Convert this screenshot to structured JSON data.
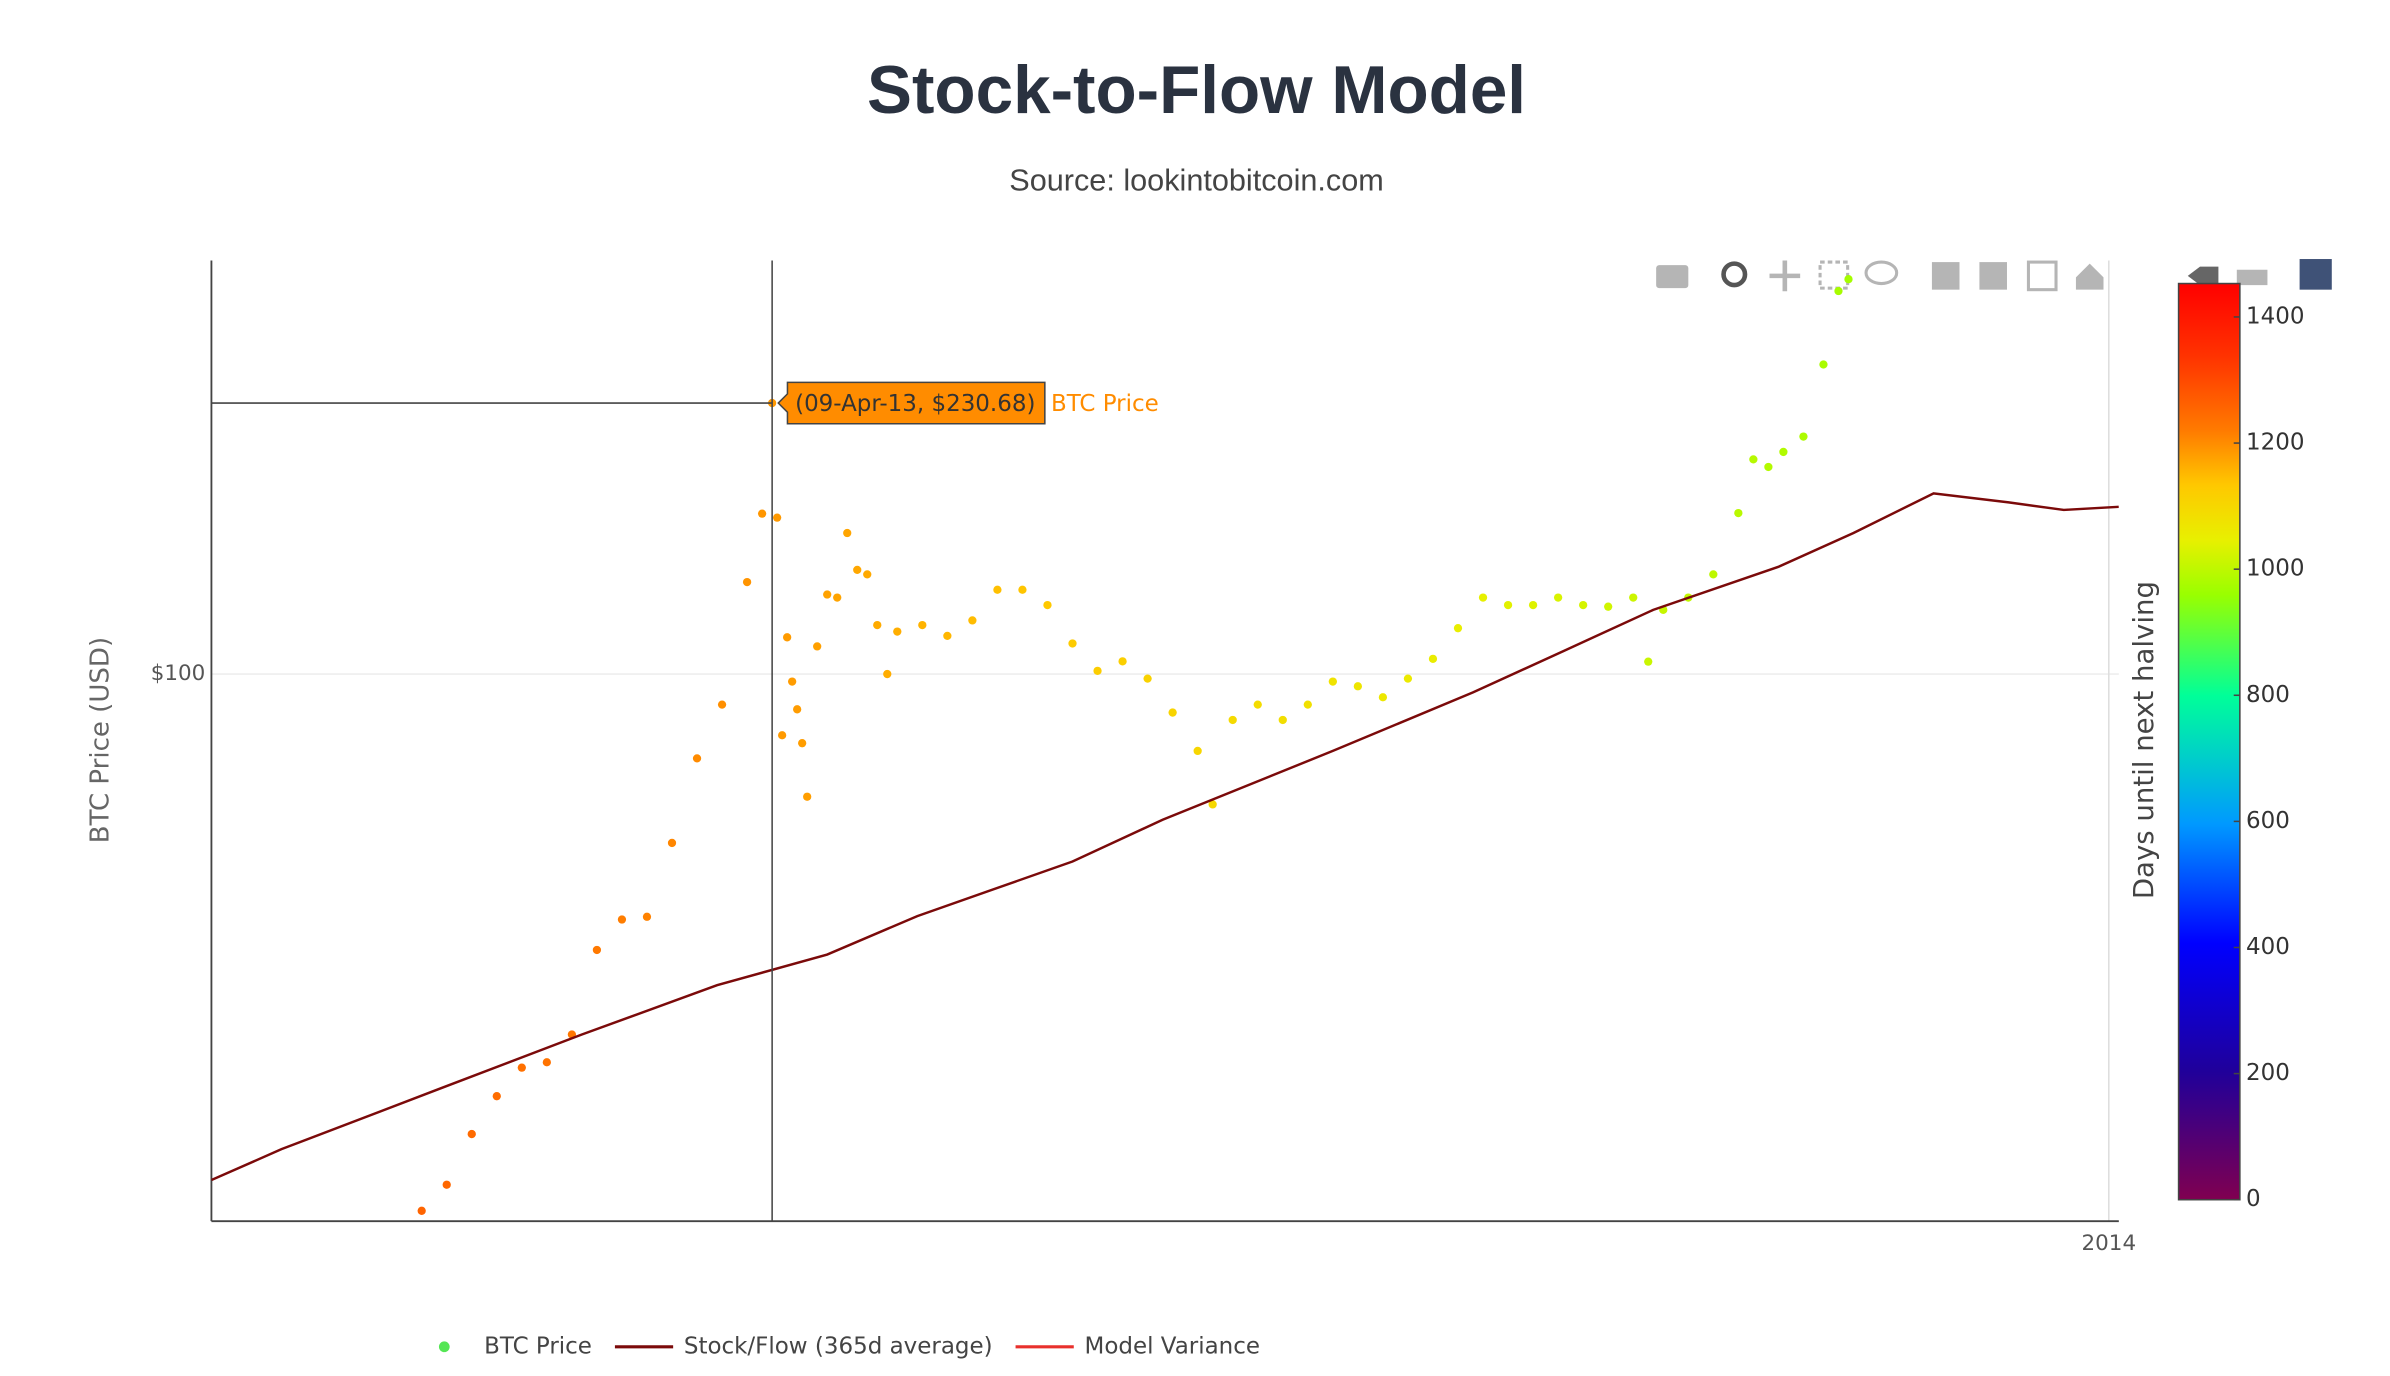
{
  "chart_data": {
    "type": "scatter",
    "title": "Stock-to-Flow Model",
    "subtitle": "Source: lookintobitcoin.com",
    "y_label": "BTC Price (USD)",
    "colorbar_title": "Days until next halving",
    "xlim": [
      "2012-12-18",
      "2014-01-03"
    ],
    "ylim": [
      18.5,
      358
    ],
    "log_y": true,
    "grid": true,
    "xticks": [
      {
        "value": "2014-01-01",
        "label": "2014"
      }
    ],
    "yticks": [
      {
        "value": 100,
        "label": "$100"
      }
    ],
    "clim": [
      0,
      1453
    ],
    "colorbar_ticks": [
      0,
      200,
      400,
      600,
      800,
      1000,
      1200,
      1400
    ],
    "colorscale": [
      [
        0,
        "#800050"
      ],
      [
        0.14,
        "#20009a"
      ],
      [
        0.28,
        "#0000ff"
      ],
      [
        0.41,
        "#0099ff"
      ],
      [
        0.55,
        "#00ff99"
      ],
      [
        0.66,
        "#99ff00"
      ],
      [
        0.72,
        "#e8f000"
      ],
      [
        0.78,
        "#ffc800"
      ],
      [
        0.84,
        "#ff7a00"
      ],
      [
        0.92,
        "#ff3300"
      ],
      [
        1,
        "#ff0000"
      ]
    ],
    "hover": {
      "text": "(09-Apr-13, $230.68)",
      "x": "2013-04-09",
      "y": 230.68,
      "color": "#ff8c00"
    },
    "series": [
      {
        "name": "BTC Price",
        "type": "scatter",
        "color": "#55e655",
        "x": [
          "2013-01-29",
          "2013-02-03",
          "2013-02-08",
          "2013-02-13",
          "2013-02-18",
          "2013-02-23",
          "2013-02-28",
          "2013-03-05",
          "2013-03-10",
          "2013-03-15",
          "2013-03-20",
          "2013-03-25",
          "2013-03-30",
          "2013-04-04",
          "2013-04-07",
          "2013-04-09",
          "2013-04-10",
          "2013-04-11",
          "2013-04-12",
          "2013-04-13",
          "2013-04-14",
          "2013-04-15",
          "2013-04-16",
          "2013-04-18",
          "2013-04-20",
          "2013-04-22",
          "2013-04-24",
          "2013-04-26",
          "2013-04-28",
          "2013-04-30",
          "2013-05-02",
          "2013-05-04",
          "2013-05-09",
          "2013-05-14",
          "2013-05-19",
          "2013-05-24",
          "2013-05-29",
          "2013-06-03",
          "2013-06-08",
          "2013-06-13",
          "2013-06-18",
          "2013-06-23",
          "2013-06-28",
          "2013-07-03",
          "2013-07-06",
          "2013-07-10",
          "2013-07-15",
          "2013-07-20",
          "2013-07-25",
          "2013-07-30",
          "2013-08-04",
          "2013-08-09",
          "2013-08-14",
          "2013-08-19",
          "2013-08-24",
          "2013-08-29",
          "2013-09-03",
          "2013-09-08",
          "2013-09-13",
          "2013-09-18",
          "2013-09-23",
          "2013-09-28",
          "2013-10-01",
          "2013-10-04",
          "2013-10-09",
          "2013-10-14",
          "2013-10-19",
          "2013-10-22",
          "2013-10-25",
          "2013-10-28",
          "2013-11-01",
          "2013-11-05",
          "2013-11-08",
          "2013-11-10"
        ],
        "values": [
          19.1,
          20.7,
          24.2,
          27.2,
          29.7,
          30.2,
          32.9,
          42.7,
          46.9,
          47.3,
          59.4,
          77.1,
          91,
          132.8,
          164,
          230.68,
          162,
          82.8,
          112,
          97.7,
          89.7,
          80.8,
          68.5,
          108.9,
          127.8,
          126.6,
          154.5,
          137.9,
          136,
          116.3,
          100,
          114,
          116.3,
          112.5,
          118,
          129.7,
          129.7,
          123.7,
          109.9,
          101,
          104,
          98.6,
          88.8,
          78.9,
          66.9,
          86.8,
          91,
          86.8,
          91,
          97.7,
          96.3,
          93.1,
          98.6,
          104.8,
          115.2,
          126.6,
          123.7,
          123.7,
          126.6,
          123.7,
          123.1,
          126.6,
          103.9,
          121.9,
          126.6,
          136,
          164.3,
          193.9,
          189.4,
          198.4,
          208,
          259.8,
          325.9,
          338
        ],
        "color_values": [
          1257,
          1252,
          1247,
          1242,
          1237,
          1232,
          1227,
          1222,
          1217,
          1212,
          1207,
          1202,
          1197,
          1192,
          1189,
          1187,
          1186,
          1185,
          1184,
          1183,
          1182,
          1181,
          1180,
          1178,
          1176,
          1174,
          1172,
          1170,
          1168,
          1166,
          1164,
          1162,
          1157,
          1152,
          1147,
          1142,
          1137,
          1132,
          1127,
          1122,
          1117,
          1112,
          1107,
          1102,
          1099,
          1095,
          1090,
          1085,
          1080,
          1075,
          1070,
          1065,
          1060,
          1055,
          1050,
          1045,
          1040,
          1035,
          1030,
          1025,
          1020,
          1015,
          1012,
          1009,
          1004,
          999,
          994,
          991,
          988,
          985,
          981,
          977,
          974,
          972
        ]
      },
      {
        "name": "Stock/Flow (365d average)",
        "type": "line",
        "color": "#7b0a0a",
        "x": [
          "2012-12-18",
          "2013-01-01",
          "2013-02-02",
          "2013-03-02",
          "2013-03-29",
          "2013-04-20",
          "2013-05-08",
          "2013-06-08",
          "2013-06-26",
          "2013-07-30",
          "2013-08-27",
          "2013-09-14",
          "2013-10-02",
          "2013-10-27",
          "2013-11-11",
          "2013-11-27",
          "2013-12-12",
          "2013-12-23",
          "2014-01-03"
        ],
        "values": [
          21.0,
          23.1,
          27.9,
          32.9,
          38.3,
          42.1,
          47.4,
          56.1,
          63.8,
          78.9,
          94.5,
          107.3,
          121.9,
          139.2,
          154.5,
          174.6,
          169.8,
          165.9,
          167.5
        ]
      },
      {
        "name": "Model Variance",
        "type": "line",
        "color": "#e8302c"
      }
    ]
  }
}
